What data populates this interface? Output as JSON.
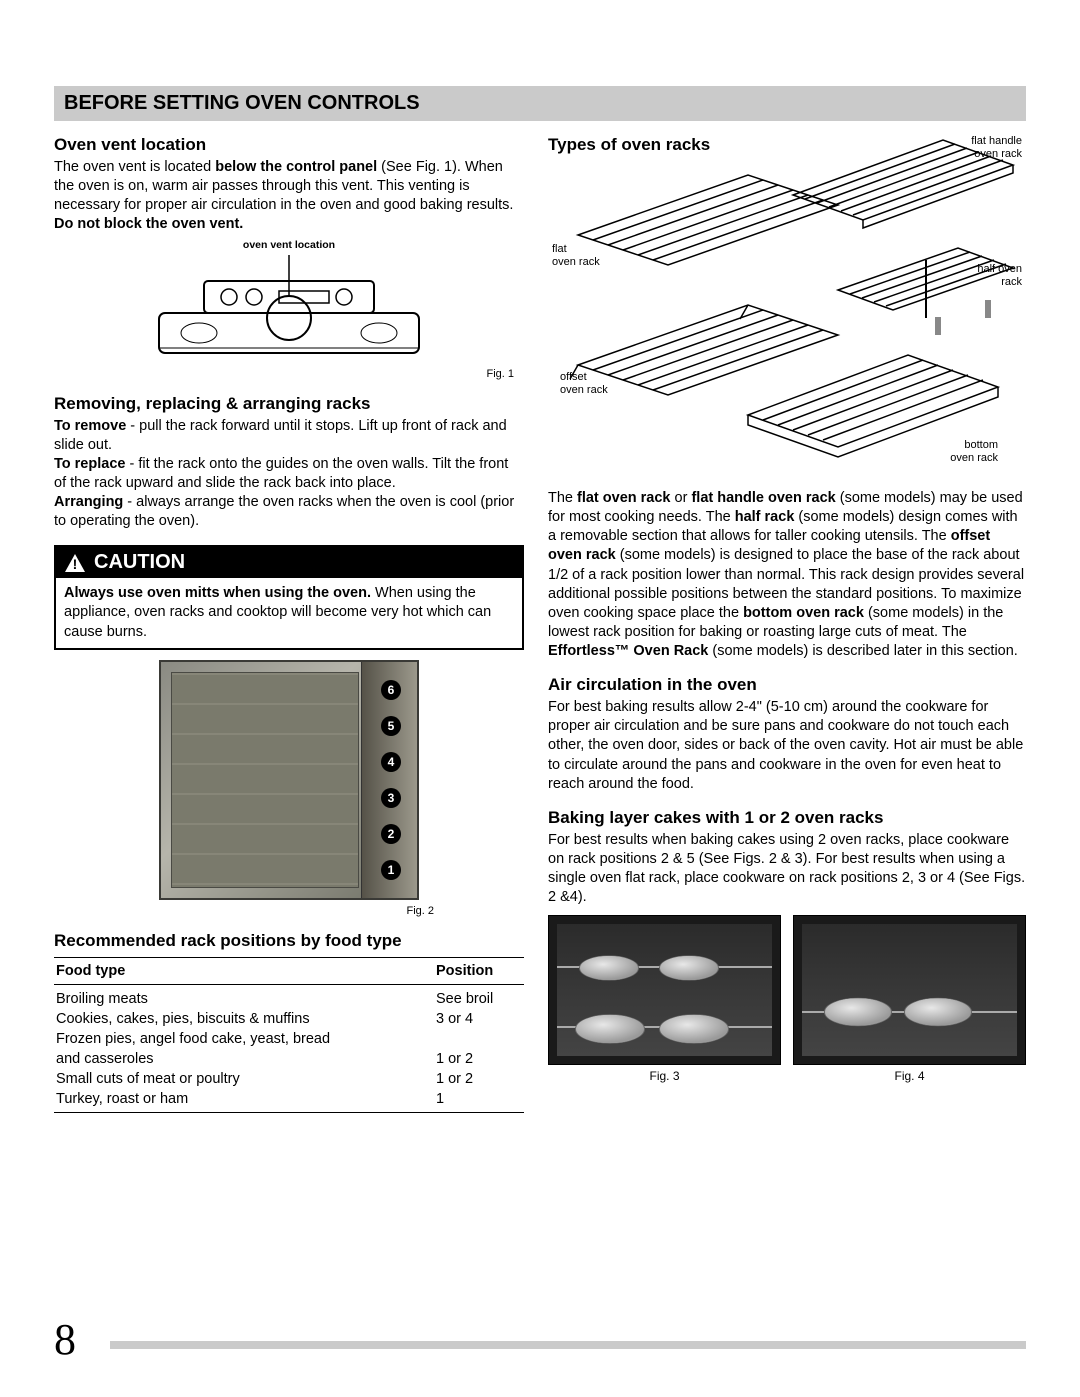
{
  "page_number": "8",
  "header": "BEFORE SETTING OVEN CONTROLS",
  "left": {
    "vent": {
      "heading": "Oven vent location",
      "text_pre": "The oven vent is located ",
      "text_bold1": "below the control panel",
      "text_mid": " (See Fig. 1).  When the oven is on, warm air passes through this vent. This venting is necessary for proper air circulation in the oven and good baking results. ",
      "text_bold2": "Do not block the oven vent.",
      "diagram_label": "oven vent location",
      "fig_caption": "Fig. 1"
    },
    "racks": {
      "heading": "Removing, replacing & arranging racks",
      "remove_b": "To remove",
      "remove_t": " - pull the rack forward until it stops. Lift up front of rack and slide out.",
      "replace_b": "To replace",
      "replace_t": " - fit the rack onto the guides on the oven walls. Tilt the front of the rack upward and slide the rack back into place.",
      "arrange_b": "Arranging",
      "arrange_t": " - always arrange the oven racks when the oven is cool (prior to  operating the oven)."
    },
    "caution": {
      "title": "CAUTION",
      "body_b": "Always use oven mitts when using the oven.",
      "body_t": "  When using the appliance, oven racks and cooktop will become very hot which can cause burns."
    },
    "fig2_caption": "Fig. 2",
    "positions": [
      "6",
      "5",
      "4",
      "3",
      "2",
      "1"
    ],
    "table": {
      "heading": "Recommended rack positions by food type",
      "col1": "Food type",
      "col2": "Position",
      "rows": [
        {
          "food": "Broiling meats",
          "pos": "See broil",
          "indent": false
        },
        {
          "food": "Cookies, cakes, pies, biscuits & muffins",
          "pos": "3 or 4",
          "indent": false
        },
        {
          "food": "Frozen pies, angel food cake, yeast, bread",
          "pos": "",
          "indent": false
        },
        {
          "food": "and casseroles",
          "pos": "1 or 2",
          "indent": true
        },
        {
          "food": "Small cuts of meat or poultry",
          "pos": "1 or 2",
          "indent": false
        },
        {
          "food": "Turkey, roast or ham",
          "pos": "1",
          "indent": false
        }
      ]
    }
  },
  "right": {
    "types_heading": "Types of oven racks",
    "rack_labels": {
      "flat": "flat\noven rack",
      "flat_handle": "flat handle\noven rack",
      "half": "half oven\nrack",
      "offset": "offset\noven rack",
      "bottom": "bottom\noven rack"
    },
    "types_para_1": "The ",
    "types_b1": "flat oven rack",
    "types_mid1": " or ",
    "types_b2": "flat handle oven rack",
    "types_mid2": " (some models) may be used for most cooking needs. The ",
    "types_b3": "half rack",
    "types_mid3": " (some models) design comes with a removable section that allows for taller cooking utensils. The ",
    "types_b4": "offset oven rack",
    "types_mid4": " (some models) is designed to place the base of the rack about 1/2 of a rack position lower than normal. This rack design provides several additional possible positions between the standard positions. To maximize oven cooking space place the ",
    "types_b5": "bottom oven rack",
    "types_mid5": " (some models) in the lowest rack position for baking or roasting large cuts of meat. The ",
    "types_b6": "Effortless™ Oven Rack",
    "types_end": " (some models) is described later in this section.",
    "air": {
      "heading": "Air circulation in the oven",
      "text": "For best baking results allow 2-4\" (5-10 cm) around  the cookware for proper air circulation and be sure pans and cookware do not touch each other, the oven door, sides or back of the oven cavity. Hot air must be able to circulate around the pans and cookware in the oven for even heat to reach around the food."
    },
    "baking": {
      "heading": "Baking layer cakes with 1 or 2 oven racks",
      "text": "For best results when baking cakes using 2 oven racks, place cookware on rack positions 2 & 5 (See Figs. 2 & 3). For best results when using a single oven flat rack, place cookware on rack positions 2, 3 or 4 (See Figs. 2 &4)."
    },
    "fig3": "Fig. 3",
    "fig4": "Fig. 4"
  }
}
